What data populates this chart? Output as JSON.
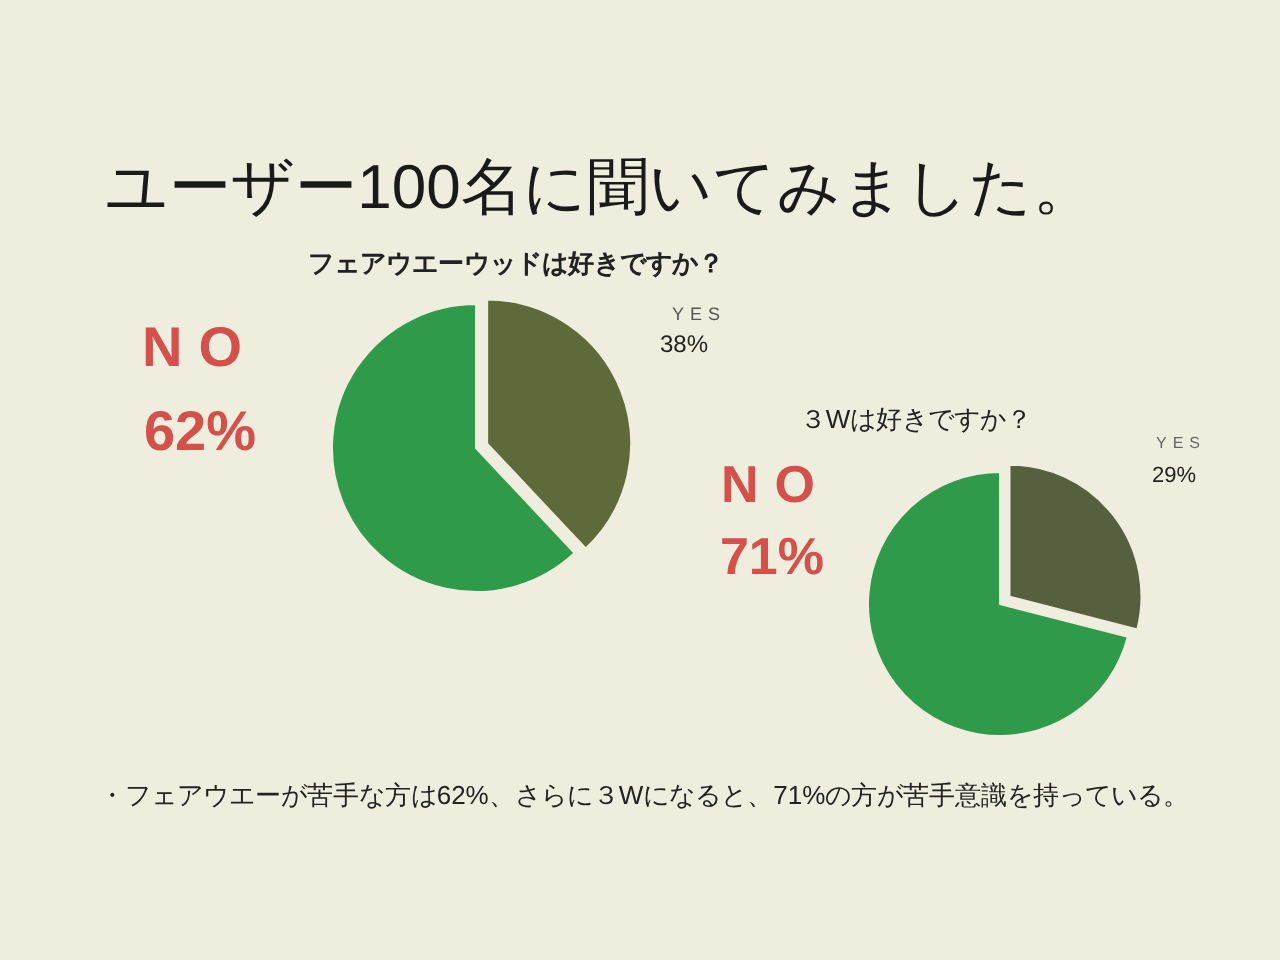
{
  "chart_data": [
    {
      "type": "pie",
      "title": "ユーザー100名に聞いてみました。",
      "subtitle": "フェアウエーウッドは好きですか？",
      "categories": [
        "YES",
        "NO"
      ],
      "values": [
        38,
        62
      ],
      "value_labels": [
        "38%",
        "62%"
      ],
      "colors": [
        "#5e6a3a",
        "#2f9a4a"
      ]
    },
    {
      "type": "pie",
      "title": "３Wは好きですか？",
      "categories": [
        "YES",
        "NO"
      ],
      "values": [
        29,
        71
      ],
      "value_labels": [
        "29%",
        "71%"
      ],
      "colors": [
        "#56603f",
        "#2f9a4a"
      ],
      "annotations": [
        "・フェアウエーが苦手な方は62%、さらに３Wになると、71%の方が苦手意識を持っている。"
      ]
    }
  ]
}
